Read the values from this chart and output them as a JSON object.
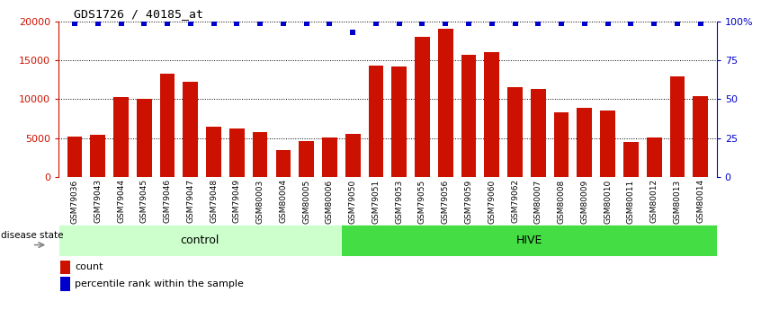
{
  "title": "GDS1726 / 40185_at",
  "categories": [
    "GSM79036",
    "GSM79043",
    "GSM79044",
    "GSM79045",
    "GSM79046",
    "GSM79047",
    "GSM79048",
    "GSM79049",
    "GSM80003",
    "GSM80004",
    "GSM80005",
    "GSM80006",
    "GSM79050",
    "GSM79051",
    "GSM79053",
    "GSM79055",
    "GSM79056",
    "GSM79059",
    "GSM79060",
    "GSM79062",
    "GSM80007",
    "GSM80008",
    "GSM80009",
    "GSM80010",
    "GSM80011",
    "GSM80012",
    "GSM80013",
    "GSM80014"
  ],
  "counts": [
    5200,
    5400,
    10300,
    10100,
    13300,
    12200,
    6400,
    6200,
    5700,
    3400,
    4600,
    5100,
    5500,
    14300,
    14200,
    18100,
    19100,
    15700,
    16100,
    11500,
    11300,
    8300,
    8900,
    8500,
    4500,
    5100,
    12900,
    10400
  ],
  "percentile_ranks": [
    99,
    99,
    99,
    99,
    99,
    99,
    99,
    99,
    99,
    99,
    99,
    99,
    93,
    99,
    99,
    99,
    99,
    99,
    99,
    99,
    99,
    99,
    99,
    99,
    99,
    99,
    99,
    99
  ],
  "bar_color": "#cc1100",
  "percentile_color": "#0000cc",
  "ylim_left": [
    0,
    20000
  ],
  "ylim_right": [
    0,
    100
  ],
  "yticks_left": [
    0,
    5000,
    10000,
    15000,
    20000
  ],
  "yticks_right": [
    0,
    25,
    50,
    75,
    100
  ],
  "ytick_right_labels": [
    "0",
    "25",
    "50",
    "75",
    "100%"
  ],
  "control_bg": "#ccffcc",
  "hive_bg": "#44dd44",
  "xstrip_bg": "#cccccc",
  "background_color": "#ffffff",
  "n_control": 12,
  "n_hive": 16
}
